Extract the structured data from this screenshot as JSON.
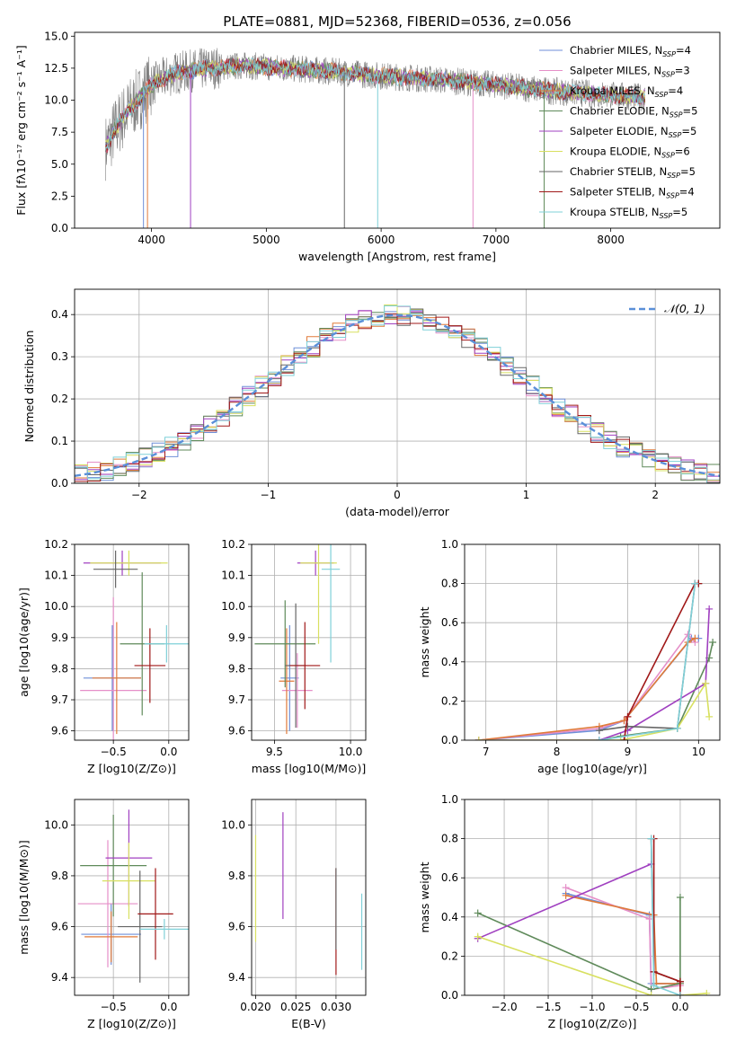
{
  "figure_title": "PLATE=0881, MJD=52368, FIBERID=0536, z=0.056",
  "colors": [
    "#6f8fd8",
    "#e58fc8",
    "#e07a3a",
    "#5f8a5a",
    "#a040c0",
    "#d8e060",
    "#666666",
    "#a01818",
    "#7fd0d8"
  ],
  "chart_data": [
    {
      "id": "spectrum",
      "type": "line",
      "title": "PLATE=0881, MJD=52368, FIBERID=0536, z=0.056",
      "xlabel": "wavelength [Angstrom, rest frame]",
      "ylabel": "Flux [fλ10⁻¹⁷ erg cm⁻² s⁻¹ A⁻¹]",
      "xlim": [
        3330,
        8950
      ],
      "ylim": [
        0,
        15.3
      ],
      "xticks": [
        4000,
        5000,
        6000,
        7000,
        8000
      ],
      "yticks": [
        0.0,
        2.5,
        5.0,
        7.5,
        10.0,
        12.5,
        15.0
      ],
      "legend_position": "right",
      "data_range": [
        3600,
        8300
      ],
      "shape_x": [
        3600,
        3700,
        3800,
        3900,
        4000,
        4200,
        4500,
        4800,
        5000,
        5500,
        6000,
        6500,
        7000,
        7500,
        8000,
        8300
      ],
      "shape_y": [
        6.3,
        8.0,
        9.2,
        10.2,
        11.2,
        12.1,
        12.5,
        12.7,
        12.6,
        12.3,
        11.9,
        11.6,
        11.2,
        10.7,
        10.4,
        10.2
      ],
      "series": [
        {
          "name": "Chabrier MILES, N",
          "sub": "SSP",
          "suffix": "=4"
        },
        {
          "name": "Salpeter MILES, N",
          "sub": "SSP",
          "suffix": "=3"
        },
        {
          "name": "Kroupa MILES, N",
          "sub": "SSP",
          "suffix": "=4"
        },
        {
          "name": "Chabrier ELODIE, N",
          "sub": "SSP",
          "suffix": "=5"
        },
        {
          "name": "Salpeter ELODIE, N",
          "sub": "SSP",
          "suffix": "=5"
        },
        {
          "name": "Kroupa ELODIE, N",
          "sub": "SSP",
          "suffix": "=6"
        },
        {
          "name": "Chabrier STELIB, N",
          "sub": "SSP",
          "suffix": "=5"
        },
        {
          "name": "Salpeter STELIB, N",
          "sub": "SSP",
          "suffix": "=4"
        },
        {
          "name": "Kroupa STELIB, N",
          "sub": "SSP",
          "suffix": "=5"
        }
      ]
    },
    {
      "id": "residuals",
      "type": "step",
      "xlabel": "(data-model)/error",
      "ylabel": "Normed distribution",
      "xlim": [
        -2.5,
        2.5
      ],
      "ylim": [
        0,
        0.46
      ],
      "xticks": [
        -2,
        -1,
        0,
        1,
        2
      ],
      "yticks": [
        0.0,
        0.1,
        0.2,
        0.3,
        0.4
      ],
      "legend_label": "𝒩(0, 1)",
      "legend_position": "top-right",
      "bin_width": 0.1,
      "gaussian": {
        "mean": 0,
        "sigma": 1
      }
    },
    {
      "id": "age_vs_Z",
      "type": "errorbar",
      "xlabel": "Z [log10(Z/Z⊙)]",
      "ylabel": "age  [log10(age/yr)]",
      "xlim": [
        -0.85,
        0.18
      ],
      "ylim": [
        9.57,
        10.2
      ],
      "xticks": [
        -0.5,
        0.0
      ],
      "yticks": [
        9.6,
        9.7,
        9.8,
        9.9,
        10.0,
        10.1,
        10.2
      ],
      "points": [
        {
          "x": -0.51,
          "y": 9.77,
          "xerr": 0.26,
          "yerr": 0.17
        },
        {
          "x": -0.5,
          "y": 9.73,
          "xerr": 0.3,
          "yerr": 0.3
        },
        {
          "x": -0.47,
          "y": 9.77,
          "xerr": 0.22,
          "yerr": 0.18
        },
        {
          "x": -0.24,
          "y": 9.88,
          "xerr": 0.2,
          "yerr": 0.23
        },
        {
          "x": -0.42,
          "y": 10.14,
          "xerr": 0.35,
          "yerr": 0.04
        },
        {
          "x": -0.36,
          "y": 10.14,
          "xerr": 0.35,
          "yerr": 0.04
        },
        {
          "x": -0.48,
          "y": 10.12,
          "xerr": 0.2,
          "yerr": 0.06
        },
        {
          "x": -0.17,
          "y": 9.81,
          "xerr": 0.14,
          "yerr": 0.12
        },
        {
          "x": -0.02,
          "y": 9.88,
          "xerr": 0.2,
          "yerr": 0.06
        }
      ]
    },
    {
      "id": "age_vs_mass",
      "type": "errorbar",
      "xlabel": "mass [log10(M/M⊙)]",
      "ylabel": "",
      "xlim": [
        9.35,
        10.1
      ],
      "ylim": [
        9.57,
        10.2
      ],
      "xticks": [
        9.5,
        10.0
      ],
      "yticks": [
        9.6,
        9.7,
        9.8,
        9.9,
        10.0,
        10.1,
        10.2
      ],
      "points": [
        {
          "x": 9.6,
          "y": 9.77,
          "xerr": 0.06,
          "yerr": 0.17
        },
        {
          "x": 9.65,
          "y": 9.73,
          "xerr": 0.1,
          "yerr": 0.12
        },
        {
          "x": 9.58,
          "y": 9.76,
          "xerr": 0.05,
          "yerr": 0.17
        },
        {
          "x": 9.57,
          "y": 9.88,
          "xerr": 0.2,
          "yerr": 0.14
        },
        {
          "x": 9.77,
          "y": 10.14,
          "xerr": 0.12,
          "yerr": 0.04
        },
        {
          "x": 9.79,
          "y": 10.14,
          "xerr": 0.12,
          "yerr": 0.26
        },
        {
          "x": 9.64,
          "y": 9.81,
          "xerr": 0.07,
          "yerr": 0.2
        },
        {
          "x": 9.7,
          "y": 9.81,
          "xerr": 0.1,
          "yerr": 0.14
        },
        {
          "x": 9.87,
          "y": 10.12,
          "xerr": 0.06,
          "yerr": 0.3
        }
      ]
    },
    {
      "id": "weight_vs_age",
      "type": "line",
      "xlabel": "age  [log10(age/yr)]",
      "ylabel": "mass weight",
      "xlim": [
        6.7,
        10.3
      ],
      "ylim": [
        0,
        1.0
      ],
      "xticks": [
        7,
        8,
        9,
        10
      ],
      "yticks": [
        0.0,
        0.2,
        0.4,
        0.6,
        0.8,
        1.0
      ],
      "series": [
        {
          "x": [
            6.9,
            8.6,
            8.95,
            9.9,
            10.0
          ],
          "y": [
            0.0,
            0.05,
            0.1,
            0.52,
            0.52
          ]
        },
        {
          "x": [
            6.9,
            8.6,
            8.95,
            9.85,
            9.95
          ],
          "y": [
            0.0,
            0.06,
            0.1,
            0.54,
            0.5
          ]
        },
        {
          "x": [
            6.9,
            8.6,
            8.95,
            9.85,
            9.95
          ],
          "y": [
            0.0,
            0.07,
            0.1,
            0.5,
            0.52
          ]
        },
        {
          "x": [
            8.6,
            8.9,
            9.7,
            10.15,
            10.2
          ],
          "y": [
            0.0,
            0.02,
            0.06,
            0.42,
            0.5
          ]
        },
        {
          "x": [
            6.9,
            8.6,
            9.0,
            10.1,
            10.15
          ],
          "y": [
            0.0,
            0.0,
            0.05,
            0.29,
            0.67
          ]
        },
        {
          "x": [
            6.9,
            8.9,
            9.7,
            10.1,
            10.15
          ],
          "y": [
            0.0,
            0.0,
            0.06,
            0.29,
            0.12
          ]
        },
        {
          "x": [
            8.6,
            9.0,
            9.7,
            9.95,
            10.0
          ],
          "y": [
            0.05,
            0.07,
            0.06,
            0.8,
            0.8
          ]
        },
        {
          "x": [
            8.95,
            9.0,
            9.95,
            10.0
          ],
          "y": [
            0.0,
            0.12,
            0.8,
            0.8
          ]
        },
        {
          "x": [
            8.6,
            9.7,
            9.95
          ],
          "y": [
            0.0,
            0.06,
            0.8
          ]
        }
      ]
    },
    {
      "id": "mass_vs_Z",
      "type": "errorbar",
      "xlabel": "Z [log10(Z/Z⊙)]",
      "ylabel": "mass [log10(M/M⊙)]",
      "xlim": [
        -0.85,
        0.18
      ],
      "ylim": [
        9.33,
        10.1
      ],
      "xticks": [
        -0.5,
        0.0
      ],
      "yticks": [
        9.4,
        9.6,
        9.8,
        10.0
      ],
      "points": [
        {
          "x": -0.52,
          "y": 9.57,
          "xerr": 0.27,
          "yerr": 0.12
        },
        {
          "x": -0.55,
          "y": 9.69,
          "xerr": 0.27,
          "yerr": 0.25
        },
        {
          "x": -0.52,
          "y": 9.56,
          "xerr": 0.24,
          "yerr": 0.1
        },
        {
          "x": -0.5,
          "y": 9.84,
          "xerr": 0.3,
          "yerr": 0.2
        },
        {
          "x": -0.36,
          "y": 9.87,
          "xerr": 0.21,
          "yerr": 0.19
        },
        {
          "x": -0.36,
          "y": 9.78,
          "xerr": 0.24,
          "yerr": 0.15
        },
        {
          "x": -0.26,
          "y": 9.6,
          "xerr": 0.2,
          "yerr": 0.22
        },
        {
          "x": -0.12,
          "y": 9.65,
          "xerr": 0.16,
          "yerr": 0.18
        },
        {
          "x": -0.04,
          "y": 9.59,
          "xerr": 0.22,
          "yerr": 0.04
        }
      ]
    },
    {
      "id": "mass_vs_ebv",
      "type": "errorbar",
      "xlabel": "E(B-V)",
      "ylabel": "",
      "xlim": [
        0.0195,
        0.0337
      ],
      "ylim": [
        9.33,
        10.1
      ],
      "xticks": [
        0.02,
        0.025,
        0.03
      ],
      "yticks": [
        9.4,
        9.6,
        9.8,
        10.0
      ],
      "points": [
        {
          "x": 0.02,
          "y": 9.75,
          "xerr": 0,
          "yerr": 0.21
        },
        {
          "x": 0.0234,
          "y": 9.84,
          "xerr": 0,
          "yerr": 0.21
        },
        {
          "x": 0.03,
          "y": 9.62,
          "xerr": 0,
          "yerr": 0.21
        },
        {
          "x": 0.03,
          "y": 9.67,
          "xerr": 0,
          "yerr": 0.16
        },
        {
          "x": 0.0332,
          "y": 9.58,
          "xerr": 0,
          "yerr": 0.15
        }
      ]
    },
    {
      "id": "weight_vs_Z",
      "type": "line",
      "xlabel": "Z [log10(Z/Z⊙)]",
      "ylabel": "mass weight",
      "xlim": [
        -2.45,
        0.45
      ],
      "ylim": [
        0,
        1.0
      ],
      "xticks": [
        -2.0,
        -1.5,
        -1.0,
        -0.5,
        0.0
      ],
      "yticks": [
        0.0,
        0.2,
        0.4,
        0.6,
        0.8,
        1.0
      ],
      "series": [
        {
          "x": [
            -1.3,
            -0.35,
            -0.33,
            0.0
          ],
          "y": [
            0.52,
            0.41,
            0.06,
            0.06
          ]
        },
        {
          "x": [
            -1.3,
            -0.35,
            -0.33,
            0.0
          ],
          "y": [
            0.55,
            0.39,
            0.03,
            0.05
          ]
        },
        {
          "x": [
            -1.3,
            -0.3,
            -0.27,
            0.0
          ],
          "y": [
            0.51,
            0.41,
            0.06,
            0.06
          ]
        },
        {
          "x": [
            -2.3,
            -0.33,
            0.0,
            0.0
          ],
          "y": [
            0.42,
            0.03,
            0.06,
            0.5
          ]
        },
        {
          "x": [
            -2.3,
            -0.33
          ],
          "y": [
            0.29,
            0.67
          ]
        },
        {
          "x": [
            -2.3,
            -0.33,
            0.0,
            0.3
          ],
          "y": [
            0.3,
            0.0,
            0.0,
            0.01
          ]
        },
        {
          "x": [
            -0.33,
            -0.3,
            0.0
          ],
          "y": [
            0.8,
            0.12,
            0.07
          ]
        },
        {
          "x": [
            -0.3,
            -0.3,
            0.0,
            0.0
          ],
          "y": [
            0.8,
            0.12,
            0.07,
            0.0
          ]
        },
        {
          "x": [
            -0.33,
            -0.3,
            0.0
          ],
          "y": [
            0.8,
            0.05,
            0.0
          ]
        }
      ]
    }
  ]
}
